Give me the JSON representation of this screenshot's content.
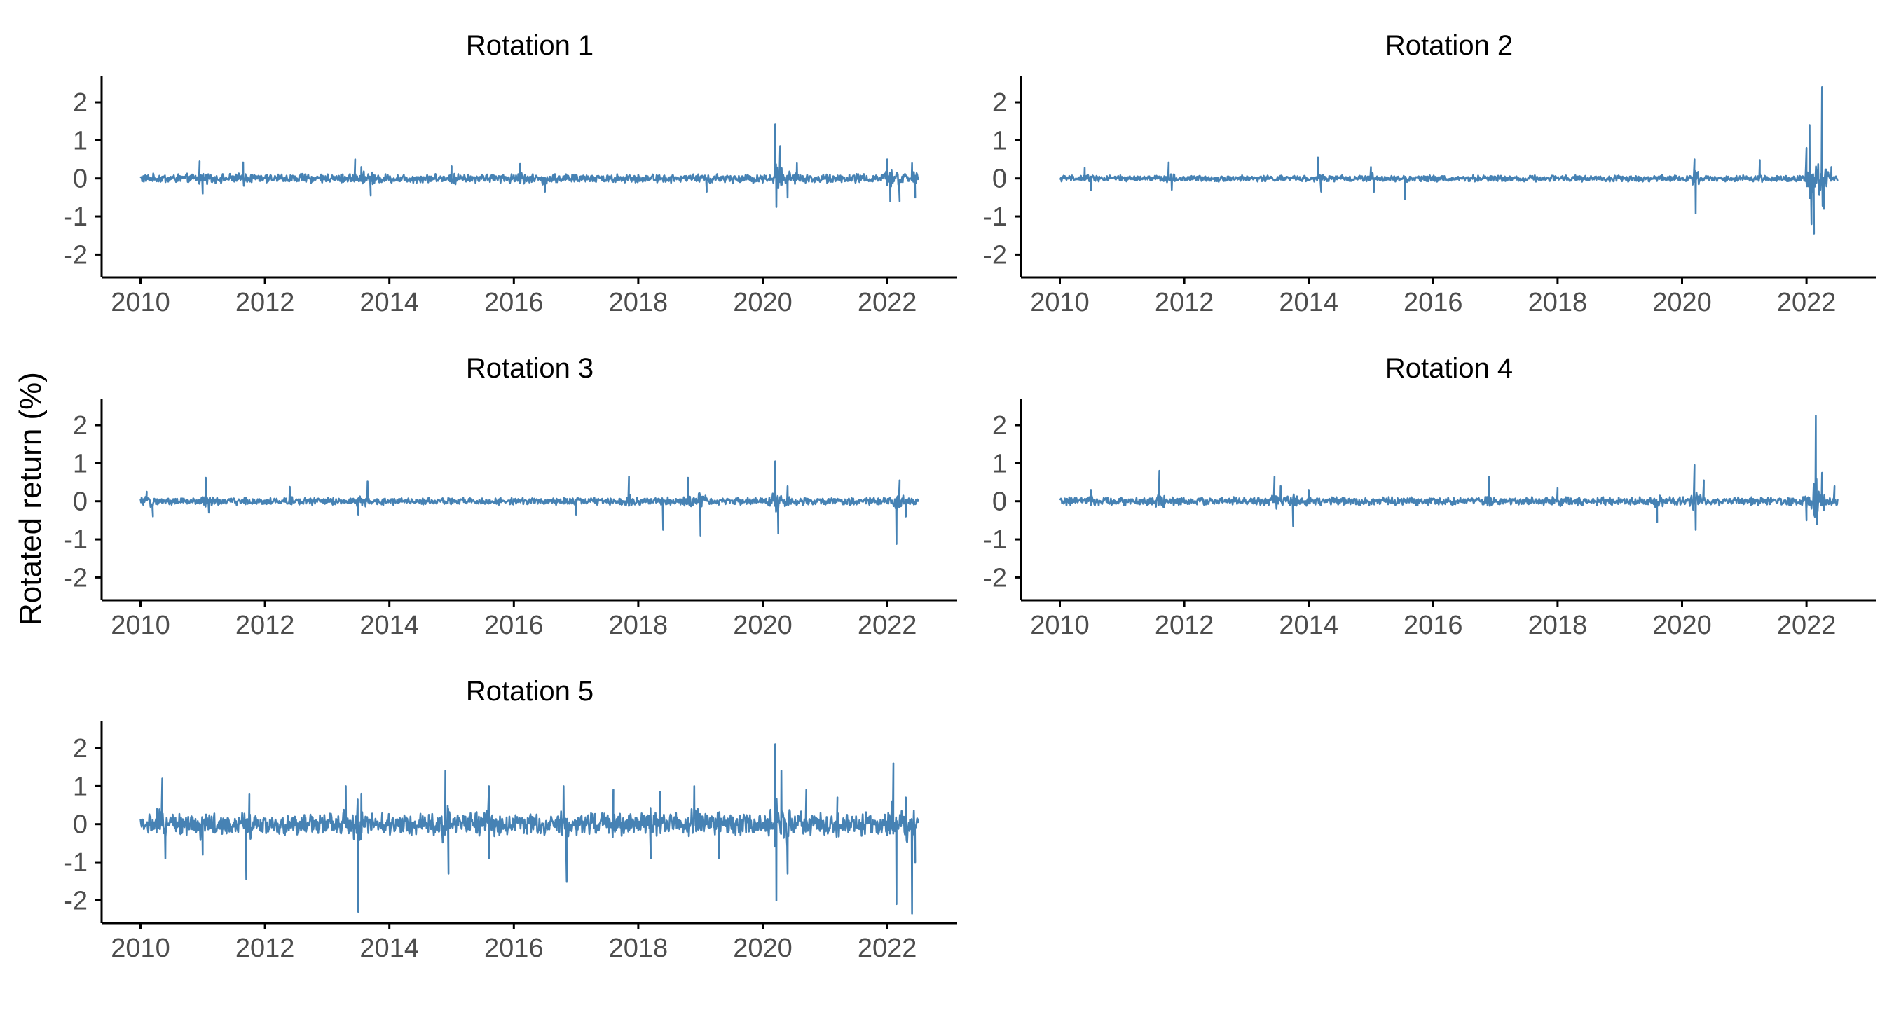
{
  "figure": {
    "ylabel": "Rotated return (%)",
    "line_color": "#4682b4"
  },
  "chart_data": [
    {
      "type": "line",
      "title": "Rotation 1",
      "x_range": [
        2010.0,
        2022.5
      ],
      "ylim": [
        -2.6,
        2.7
      ],
      "x_ticks": [
        2010,
        2012,
        2014,
        2016,
        2018,
        2020,
        2022
      ],
      "y_ticks": [
        -2,
        -1,
        0,
        1,
        2
      ],
      "grid": false,
      "base_noise": 0.09,
      "spikes": [
        {
          "x": 2010.95,
          "y": 0.45
        },
        {
          "x": 2011.0,
          "y": -0.4
        },
        {
          "x": 2011.65,
          "y": 0.42
        },
        {
          "x": 2013.45,
          "y": 0.5
        },
        {
          "x": 2013.55,
          "y": 0.3
        },
        {
          "x": 2013.7,
          "y": -0.45
        },
        {
          "x": 2015.0,
          "y": 0.32
        },
        {
          "x": 2016.1,
          "y": 0.38
        },
        {
          "x": 2016.5,
          "y": -0.35
        },
        {
          "x": 2019.1,
          "y": -0.35
        },
        {
          "x": 2020.2,
          "y": 1.42
        },
        {
          "x": 2020.22,
          "y": -0.75
        },
        {
          "x": 2020.28,
          "y": 0.85
        },
        {
          "x": 2020.4,
          "y": -0.5
        },
        {
          "x": 2020.55,
          "y": 0.4
        },
        {
          "x": 2022.0,
          "y": 0.5
        },
        {
          "x": 2022.05,
          "y": -0.6
        },
        {
          "x": 2022.2,
          "y": -0.6
        },
        {
          "x": 2022.4,
          "y": 0.4
        },
        {
          "x": 2022.45,
          "y": -0.5
        }
      ]
    },
    {
      "type": "line",
      "title": "Rotation 2",
      "x_range": [
        2010.0,
        2022.5
      ],
      "ylim": [
        -2.6,
        2.7
      ],
      "x_ticks": [
        2010,
        2012,
        2014,
        2016,
        2018,
        2020,
        2022
      ],
      "y_ticks": [
        -2,
        -1,
        0,
        1,
        2
      ],
      "grid": false,
      "base_noise": 0.06,
      "spikes": [
        {
          "x": 2010.4,
          "y": 0.28
        },
        {
          "x": 2010.5,
          "y": -0.3
        },
        {
          "x": 2011.75,
          "y": 0.42
        },
        {
          "x": 2011.8,
          "y": -0.3
        },
        {
          "x": 2014.15,
          "y": 0.55
        },
        {
          "x": 2014.2,
          "y": -0.35
        },
        {
          "x": 2015.0,
          "y": 0.3
        },
        {
          "x": 2015.05,
          "y": -0.35
        },
        {
          "x": 2015.55,
          "y": -0.55
        },
        {
          "x": 2020.2,
          "y": 0.5
        },
        {
          "x": 2020.22,
          "y": -0.92
        },
        {
          "x": 2021.25,
          "y": 0.48
        },
        {
          "x": 2022.0,
          "y": 0.8
        },
        {
          "x": 2022.05,
          "y": 1.4
        },
        {
          "x": 2022.08,
          "y": -1.2
        },
        {
          "x": 2022.12,
          "y": -1.45
        },
        {
          "x": 2022.25,
          "y": 2.4
        },
        {
          "x": 2022.28,
          "y": -0.8
        },
        {
          "x": 2022.4,
          "y": 0.3
        }
      ]
    },
    {
      "type": "line",
      "title": "Rotation 3",
      "x_range": [
        2010.0,
        2022.5
      ],
      "ylim": [
        -2.6,
        2.7
      ],
      "x_ticks": [
        2010,
        2012,
        2014,
        2016,
        2018,
        2020,
        2022
      ],
      "y_ticks": [
        -2,
        -1,
        0,
        1,
        2
      ],
      "grid": false,
      "base_noise": 0.07,
      "spikes": [
        {
          "x": 2010.1,
          "y": 0.25
        },
        {
          "x": 2010.2,
          "y": -0.4
        },
        {
          "x": 2011.05,
          "y": 0.62
        },
        {
          "x": 2011.1,
          "y": -0.3
        },
        {
          "x": 2012.4,
          "y": 0.38
        },
        {
          "x": 2013.65,
          "y": 0.52
        },
        {
          "x": 2013.5,
          "y": -0.35
        },
        {
          "x": 2017.0,
          "y": -0.35
        },
        {
          "x": 2017.85,
          "y": 0.65
        },
        {
          "x": 2018.4,
          "y": -0.75
        },
        {
          "x": 2018.8,
          "y": 0.62
        },
        {
          "x": 2019.0,
          "y": -0.9
        },
        {
          "x": 2020.2,
          "y": 1.05
        },
        {
          "x": 2020.25,
          "y": -0.85
        },
        {
          "x": 2020.4,
          "y": 0.4
        },
        {
          "x": 2022.15,
          "y": -1.12
        },
        {
          "x": 2022.2,
          "y": 0.55
        },
        {
          "x": 2022.3,
          "y": -0.4
        }
      ]
    },
    {
      "type": "line",
      "title": "Rotation 4",
      "x_range": [
        2010.0,
        2022.5
      ],
      "ylim": [
        -2.6,
        2.7
      ],
      "x_ticks": [
        2010,
        2012,
        2014,
        2016,
        2018,
        2020,
        2022
      ],
      "y_ticks": [
        -2,
        -1,
        0,
        1,
        2
      ],
      "grid": false,
      "base_noise": 0.08,
      "spikes": [
        {
          "x": 2010.5,
          "y": 0.3
        },
        {
          "x": 2011.6,
          "y": 0.8
        },
        {
          "x": 2013.45,
          "y": 0.65
        },
        {
          "x": 2013.55,
          "y": 0.4
        },
        {
          "x": 2013.75,
          "y": -0.65
        },
        {
          "x": 2014.0,
          "y": 0.3
        },
        {
          "x": 2016.9,
          "y": 0.65
        },
        {
          "x": 2018.0,
          "y": 0.35
        },
        {
          "x": 2019.6,
          "y": -0.55
        },
        {
          "x": 2020.2,
          "y": 0.95
        },
        {
          "x": 2020.22,
          "y": -0.75
        },
        {
          "x": 2020.35,
          "y": 0.55
        },
        {
          "x": 2022.0,
          "y": -0.5
        },
        {
          "x": 2022.15,
          "y": 2.25
        },
        {
          "x": 2022.17,
          "y": -0.6
        },
        {
          "x": 2022.25,
          "y": 0.75
        },
        {
          "x": 2022.45,
          "y": 0.4
        }
      ]
    },
    {
      "type": "line",
      "title": "Rotation 5",
      "x_range": [
        2010.0,
        2022.5
      ],
      "ylim": [
        -2.6,
        2.7
      ],
      "x_ticks": [
        2010,
        2012,
        2014,
        2016,
        2018,
        2020,
        2022
      ],
      "y_ticks": [
        -2,
        -1,
        0,
        1,
        2
      ],
      "grid": false,
      "base_noise": 0.22,
      "spikes": [
        {
          "x": 2010.35,
          "y": 1.2
        },
        {
          "x": 2010.4,
          "y": -0.9
        },
        {
          "x": 2011.0,
          "y": -0.8
        },
        {
          "x": 2011.75,
          "y": 0.8
        },
        {
          "x": 2011.7,
          "y": -1.45
        },
        {
          "x": 2013.3,
          "y": 1.0
        },
        {
          "x": 2013.5,
          "y": -2.3
        },
        {
          "x": 2013.55,
          "y": 0.8
        },
        {
          "x": 2014.9,
          "y": 1.4
        },
        {
          "x": 2014.95,
          "y": -1.3
        },
        {
          "x": 2015.6,
          "y": 1.0
        },
        {
          "x": 2015.6,
          "y": -0.9
        },
        {
          "x": 2016.8,
          "y": 1.0
        },
        {
          "x": 2016.85,
          "y": -1.5
        },
        {
          "x": 2017.6,
          "y": 0.9
        },
        {
          "x": 2018.2,
          "y": -0.9
        },
        {
          "x": 2018.35,
          "y": 0.85
        },
        {
          "x": 2018.9,
          "y": 1.0
        },
        {
          "x": 2019.3,
          "y": -0.9
        },
        {
          "x": 2020.2,
          "y": 2.1
        },
        {
          "x": 2020.22,
          "y": -2.0
        },
        {
          "x": 2020.3,
          "y": 1.4
        },
        {
          "x": 2020.4,
          "y": -1.3
        },
        {
          "x": 2020.7,
          "y": 0.9
        },
        {
          "x": 2021.2,
          "y": 0.7
        },
        {
          "x": 2022.1,
          "y": 1.6
        },
        {
          "x": 2022.15,
          "y": -2.1
        },
        {
          "x": 2022.3,
          "y": 0.7
        },
        {
          "x": 2022.4,
          "y": -2.35
        },
        {
          "x": 2022.45,
          "y": -1.0
        }
      ]
    }
  ]
}
